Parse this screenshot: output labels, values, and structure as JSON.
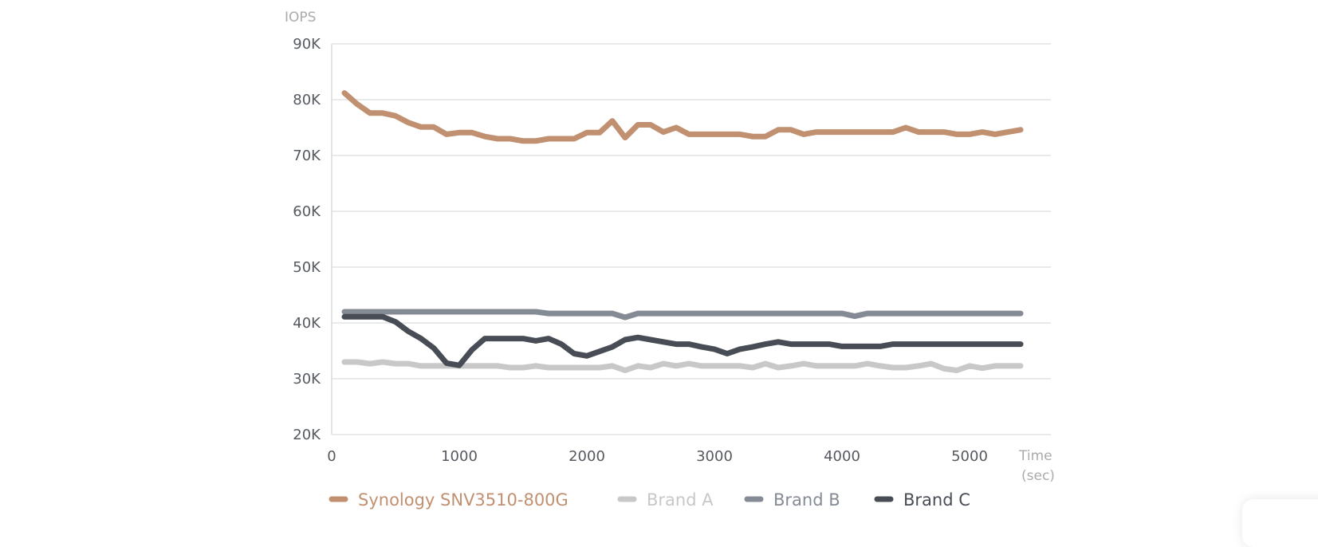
{
  "chart_data": {
    "type": "line",
    "title": "",
    "ylabel": "IOPS",
    "xlabel": "Time",
    "xlabel_unit": "(sec)",
    "xlim": [
      0,
      5650
    ],
    "ylim": [
      20000,
      90000
    ],
    "grid": true,
    "y_ticks": [
      {
        "value": 20000,
        "label": "20K"
      },
      {
        "value": 30000,
        "label": "30K"
      },
      {
        "value": 40000,
        "label": "40K"
      },
      {
        "value": 50000,
        "label": "50K"
      },
      {
        "value": 60000,
        "label": "60K"
      },
      {
        "value": 70000,
        "label": "70K"
      },
      {
        "value": 80000,
        "label": "80K"
      },
      {
        "value": 90000,
        "label": "90K"
      }
    ],
    "x_ticks": [
      {
        "value": 0,
        "label": "0"
      },
      {
        "value": 1000,
        "label": "1000"
      },
      {
        "value": 2000,
        "label": "2000"
      },
      {
        "value": 3000,
        "label": "3000"
      },
      {
        "value": 4000,
        "label": "4000"
      },
      {
        "value": 5000,
        "label": "5000"
      }
    ],
    "legend_position": "bottom",
    "x": [
      100,
      200,
      300,
      400,
      500,
      600,
      700,
      800,
      900,
      1000,
      1100,
      1200,
      1300,
      1400,
      1500,
      1600,
      1700,
      1800,
      1900,
      2000,
      2100,
      2200,
      2300,
      2400,
      2500,
      2600,
      2700,
      2800,
      2900,
      3000,
      3100,
      3200,
      3300,
      3400,
      3500,
      3600,
      3700,
      3800,
      3900,
      4000,
      4100,
      4200,
      4300,
      4400,
      4500,
      4600,
      4700,
      4800,
      4900,
      5000,
      5100,
      5200,
      5300,
      5400
    ],
    "series": [
      {
        "name": "Synology SNV3510-800G",
        "color": "#c09070",
        "values": [
          81200,
          79200,
          77600,
          77600,
          77100,
          75900,
          75100,
          75100,
          73800,
          74100,
          74100,
          73400,
          73000,
          73000,
          72600,
          72600,
          73000,
          73000,
          73000,
          74100,
          74100,
          76200,
          73200,
          75500,
          75500,
          74200,
          75000,
          73800,
          73800,
          73800,
          73800,
          73800,
          73400,
          73400,
          74600,
          74600,
          73800,
          74200,
          74200,
          74200,
          74200,
          74200,
          74200,
          74200,
          75000,
          74200,
          74200,
          74200,
          73800,
          73800,
          74200,
          73800,
          74200,
          74600
        ]
      },
      {
        "name": "Brand A",
        "color": "#c8c8c8",
        "values": [
          33000,
          33000,
          32700,
          33000,
          32700,
          32700,
          32300,
          32300,
          32300,
          32300,
          32300,
          32300,
          32300,
          32000,
          32000,
          32300,
          32000,
          32000,
          32000,
          32000,
          32000,
          32300,
          31500,
          32300,
          32000,
          32700,
          32300,
          32700,
          32300,
          32300,
          32300,
          32300,
          32000,
          32700,
          32000,
          32300,
          32700,
          32300,
          32300,
          32300,
          32300,
          32700,
          32300,
          32000,
          32000,
          32300,
          32700,
          31800,
          31500,
          32300,
          31900,
          32300,
          32300,
          32300
        ]
      },
      {
        "name": "Brand B",
        "color": "#858b94",
        "values": [
          42000,
          42000,
          42000,
          42000,
          42000,
          42000,
          42000,
          42000,
          42000,
          42000,
          42000,
          42000,
          42000,
          42000,
          42000,
          42000,
          41700,
          41700,
          41700,
          41700,
          41700,
          41700,
          41000,
          41700,
          41700,
          41700,
          41700,
          41700,
          41700,
          41700,
          41700,
          41700,
          41700,
          41700,
          41700,
          41700,
          41700,
          41700,
          41700,
          41700,
          41200,
          41700,
          41700,
          41700,
          41700,
          41700,
          41700,
          41700,
          41700,
          41700,
          41700,
          41700,
          41700,
          41700
        ]
      },
      {
        "name": "Brand C",
        "color": "#474c55",
        "values": [
          41100,
          41100,
          41100,
          41100,
          40200,
          38500,
          37200,
          35500,
          32800,
          32400,
          35200,
          37200,
          37200,
          37200,
          37200,
          36800,
          37200,
          36200,
          34500,
          34100,
          34900,
          35700,
          37000,
          37400,
          37000,
          36600,
          36200,
          36200,
          35700,
          35300,
          34500,
          35300,
          35700,
          36200,
          36600,
          36200,
          36200,
          36200,
          36200,
          35800,
          35800,
          35800,
          35800,
          36200,
          36200,
          36200,
          36200,
          36200,
          36200,
          36200,
          36200,
          36200,
          36200,
          36200
        ]
      }
    ]
  }
}
